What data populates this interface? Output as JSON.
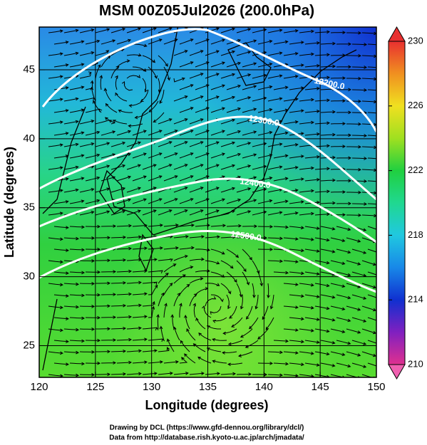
{
  "title": "MSM 00Z05Jul2026 (200.0hPa)",
  "x_axis": {
    "label": "Longitude (degrees)",
    "lim": [
      120,
      150
    ],
    "ticks": [
      120,
      125,
      130,
      135,
      140,
      145,
      150
    ]
  },
  "y_axis": {
    "label": "Latitude  (degrees)",
    "lim": [
      22.7,
      48.1
    ],
    "ticks": [
      25,
      30,
      35,
      40,
      45
    ]
  },
  "colorbar": {
    "lim": [
      210,
      230
    ],
    "ticks": [
      210,
      214,
      218,
      222,
      226,
      230
    ]
  },
  "contour_labels": [
    "12200.0",
    "12300.0",
    "12400.0",
    "12500.0"
  ],
  "credits": [
    "Drawing by DCL (https://www.gfd-dennou.org/library/dcl/)",
    "Data from http://database.rish.kyoto-u.ac.jp/arch/jmadata/"
  ]
}
